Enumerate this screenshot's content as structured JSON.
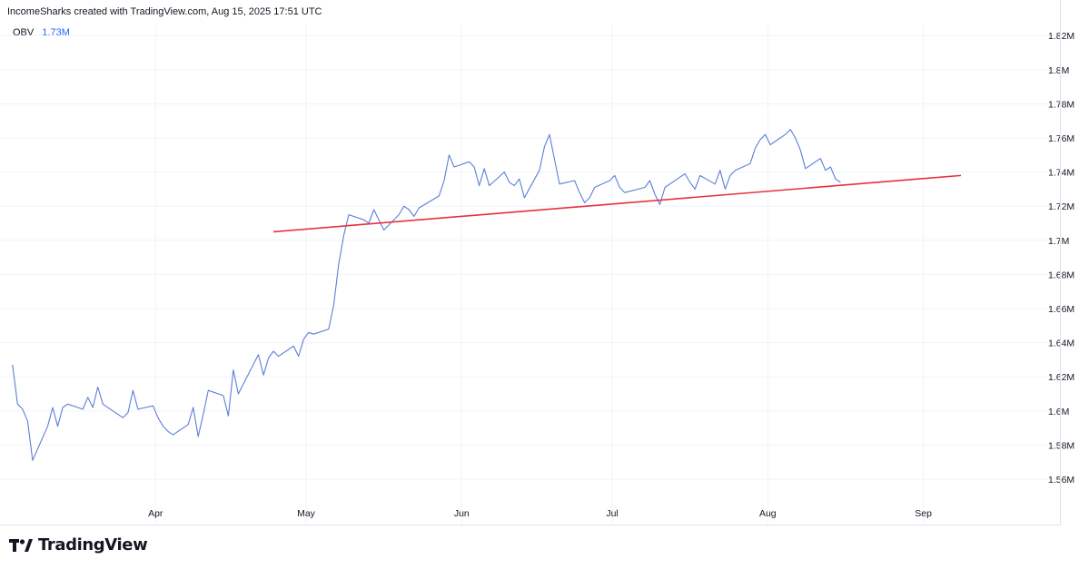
{
  "header": {
    "text": "IncomeSharks created with TradingView.com, Aug 15, 2025 17:51 UTC"
  },
  "legend": {
    "indicator": "OBV",
    "value": "1.73M"
  },
  "logo": {
    "text": "TradingView"
  },
  "colors": {
    "obv_line": "#5b7fd6",
    "trendline": "#e8303d",
    "grid": "#f0f3fa",
    "axis_text": "#131722",
    "legend_value": "#2962ff"
  },
  "chart_data": {
    "type": "line",
    "title": "",
    "xlabel": "",
    "ylabel": "",
    "ylim": [
      1.546,
      1.826
    ],
    "y_ticks": [
      "1.56M",
      "1.58M",
      "1.6M",
      "1.62M",
      "1.64M",
      "1.66M",
      "1.68M",
      "1.7M",
      "1.72M",
      "1.74M",
      "1.76M",
      "1.78M",
      "1.8M",
      "1.82M"
    ],
    "x_ticks": [
      "Apr",
      "May",
      "Jun",
      "Jul",
      "Aug",
      "Sep"
    ],
    "grid": true,
    "series": [
      {
        "indicator": "OBV",
        "x": [
          "2025-03-03",
          "2025-03-04",
          "2025-03-05",
          "2025-03-06",
          "2025-03-07",
          "2025-03-10",
          "2025-03-11",
          "2025-03-12",
          "2025-03-13",
          "2025-03-14",
          "2025-03-17",
          "2025-03-18",
          "2025-03-19",
          "2025-03-20",
          "2025-03-21",
          "2025-03-24",
          "2025-03-25",
          "2025-03-26",
          "2025-03-27",
          "2025-03-28",
          "2025-03-31",
          "2025-04-01",
          "2025-04-02",
          "2025-04-03",
          "2025-04-04",
          "2025-04-07",
          "2025-04-08",
          "2025-04-09",
          "2025-04-10",
          "2025-04-11",
          "2025-04-14",
          "2025-04-15",
          "2025-04-16",
          "2025-04-17",
          "2025-04-21",
          "2025-04-22",
          "2025-04-23",
          "2025-04-24",
          "2025-04-25",
          "2025-04-28",
          "2025-04-29",
          "2025-04-30",
          "2025-05-01",
          "2025-05-02",
          "2025-05-05",
          "2025-05-06",
          "2025-05-07",
          "2025-05-08",
          "2025-05-09",
          "2025-05-12",
          "2025-05-13",
          "2025-05-14",
          "2025-05-15",
          "2025-05-16",
          "2025-05-19",
          "2025-05-20",
          "2025-05-21",
          "2025-05-22",
          "2025-05-23",
          "2025-05-27",
          "2025-05-28",
          "2025-05-29",
          "2025-05-30",
          "2025-06-02",
          "2025-06-03",
          "2025-06-04",
          "2025-06-05",
          "2025-06-06",
          "2025-06-09",
          "2025-06-10",
          "2025-06-11",
          "2025-06-12",
          "2025-06-13",
          "2025-06-16",
          "2025-06-17",
          "2025-06-18",
          "2025-06-20",
          "2025-06-23",
          "2025-06-24",
          "2025-06-25",
          "2025-06-26",
          "2025-06-27",
          "2025-06-30",
          "2025-07-01",
          "2025-07-02",
          "2025-07-03",
          "2025-07-07",
          "2025-07-08",
          "2025-07-09",
          "2025-07-10",
          "2025-07-11",
          "2025-07-14",
          "2025-07-15",
          "2025-07-16",
          "2025-07-17",
          "2025-07-18",
          "2025-07-21",
          "2025-07-22",
          "2025-07-23",
          "2025-07-24",
          "2025-07-25",
          "2025-07-28",
          "2025-07-29",
          "2025-07-30",
          "2025-07-31",
          "2025-08-01",
          "2025-08-04",
          "2025-08-05",
          "2025-08-06",
          "2025-08-07",
          "2025-08-08",
          "2025-08-11",
          "2025-08-12",
          "2025-08-13",
          "2025-08-14",
          "2025-08-15"
        ],
        "values": [
          1.627,
          1.604,
          1.601,
          1.594,
          1.571,
          1.591,
          1.602,
          1.591,
          1.602,
          1.604,
          1.601,
          1.608,
          1.602,
          1.614,
          1.604,
          1.598,
          1.596,
          1.599,
          1.612,
          1.601,
          1.603,
          1.596,
          1.591,
          1.588,
          1.586,
          1.592,
          1.602,
          1.585,
          1.598,
          1.612,
          1.609,
          1.597,
          1.624,
          1.61,
          1.633,
          1.621,
          1.631,
          1.635,
          1.632,
          1.638,
          1.632,
          1.642,
          1.646,
          1.645,
          1.648,
          1.662,
          1.686,
          1.703,
          1.715,
          1.712,
          1.71,
          1.718,
          1.712,
          1.706,
          1.715,
          1.72,
          1.718,
          1.714,
          1.719,
          1.726,
          1.735,
          1.75,
          1.743,
          1.746,
          1.743,
          1.732,
          1.742,
          1.732,
          1.74,
          1.734,
          1.732,
          1.736,
          1.725,
          1.741,
          1.755,
          1.762,
          1.733,
          1.735,
          1.728,
          1.722,
          1.725,
          1.731,
          1.735,
          1.738,
          1.731,
          1.728,
          1.731,
          1.735,
          1.727,
          1.721,
          1.731,
          1.737,
          1.739,
          1.734,
          1.73,
          1.738,
          1.733,
          1.741,
          1.73,
          1.738,
          1.741,
          1.745,
          1.754,
          1.759,
          1.762,
          1.756,
          1.762,
          1.765,
          1.76,
          1.753,
          1.742,
          1.748,
          1.741,
          1.743,
          1.736,
          1.734
        ]
      }
    ],
    "trendline": {
      "color": "#e8303d",
      "start": {
        "x": "2025-04-24",
        "y": 1.705
      },
      "end": {
        "x": "2025-09-08",
        "y": 1.738
      }
    }
  }
}
